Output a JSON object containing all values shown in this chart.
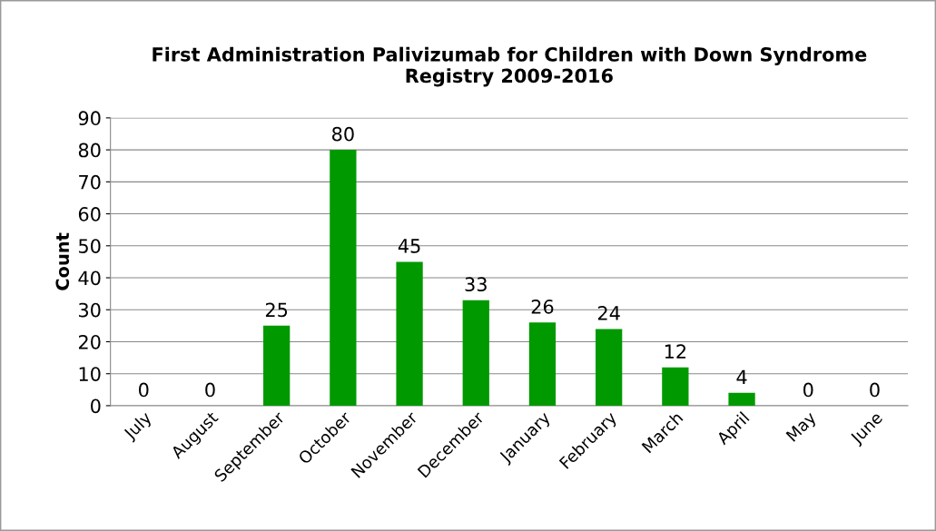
{
  "chart_data": {
    "type": "bar",
    "title": "First Administration Palivizumab for Children with Down Syndrome\nRegistry 2009-2016",
    "ylabel": "Count",
    "categories": [
      "July",
      "August",
      "September",
      "October",
      "November",
      "December",
      "January",
      "February",
      "March",
      "April",
      "May",
      "June"
    ],
    "values": [
      0,
      0,
      25,
      80,
      45,
      33,
      26,
      24,
      12,
      4,
      0,
      0
    ],
    "color": "#009900",
    "ylim": [
      0,
      90
    ],
    "yticks": [
      0,
      10,
      20,
      30,
      40,
      50,
      60,
      70,
      80,
      90
    ],
    "grid": "y",
    "data_labels": true,
    "legend": false
  }
}
